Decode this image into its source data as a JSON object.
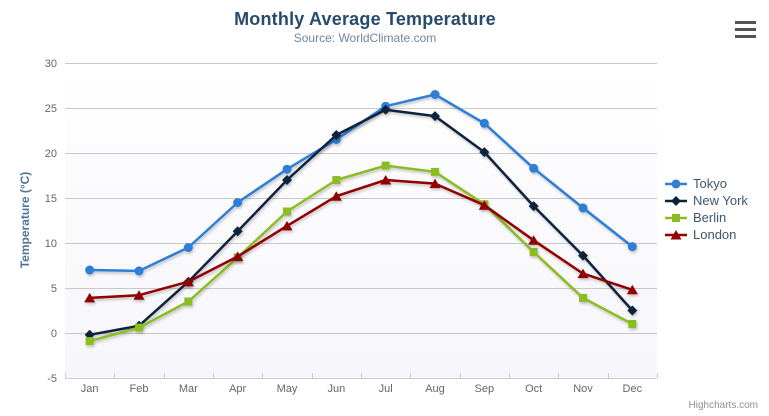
{
  "chart_data": {
    "type": "line",
    "title": "Monthly Average Temperature",
    "subtitle": "Source: WorldClimate.com",
    "xlabel": "",
    "ylabel": "Temperature (°C)",
    "categories": [
      "Jan",
      "Feb",
      "Mar",
      "Apr",
      "May",
      "Jun",
      "Jul",
      "Aug",
      "Sep",
      "Oct",
      "Nov",
      "Dec"
    ],
    "ylim": [
      -5,
      30
    ],
    "ytick_step": 5,
    "grid": true,
    "legend_position": "right",
    "series": [
      {
        "name": "Tokyo",
        "color": "#2f7ed8",
        "marker": "circle",
        "values": [
          7.0,
          6.9,
          9.5,
          14.5,
          18.2,
          21.5,
          25.2,
          26.5,
          23.3,
          18.3,
          13.9,
          9.6
        ]
      },
      {
        "name": "New York",
        "color": "#0d233a",
        "marker": "diamond",
        "values": [
          -0.2,
          0.8,
          5.7,
          11.3,
          17.0,
          22.0,
          24.8,
          24.1,
          20.1,
          14.1,
          8.6,
          2.5
        ]
      },
      {
        "name": "Berlin",
        "color": "#8bbc21",
        "marker": "square",
        "values": [
          -0.9,
          0.6,
          3.5,
          8.4,
          13.5,
          17.0,
          18.6,
          17.9,
          14.3,
          9.0,
          3.9,
          1.0
        ]
      },
      {
        "name": "London",
        "color": "#910000",
        "marker": "triangle",
        "values": [
          3.9,
          4.2,
          5.7,
          8.5,
          11.9,
          15.2,
          17.0,
          16.6,
          14.2,
          10.3,
          6.6,
          4.8
        ]
      }
    ]
  },
  "credit": {
    "label": "Highcharts.com"
  },
  "export_menu": {
    "icon": "hamburger-icon"
  },
  "theme": {
    "title_color": "#274b6d",
    "subtitle_color": "#6d869f",
    "axis_title_color": "#4d759e",
    "axis_label_color": "#666666",
    "grid_color": "#c8c8c8",
    "axis_line_color": "#c0d0e0",
    "legend_text_color": "#3e576f",
    "credit_color": "#909090",
    "background": "#ffffff"
  }
}
